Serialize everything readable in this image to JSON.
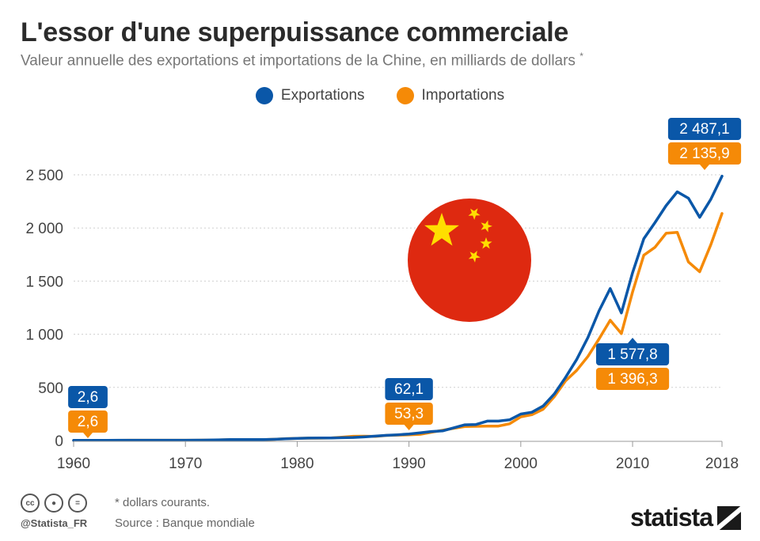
{
  "title": "L'essor d'une superpuissance commerciale",
  "subtitle": "Valeur annuelle des exportations et importations de la Chine, en milliards de dollars",
  "subtitle_mark": "*",
  "colors": {
    "exports": "#0a57a8",
    "imports": "#f58a07",
    "flag_red": "#de2910",
    "flag_yellow": "#ffde00"
  },
  "chart_data": {
    "type": "line",
    "xlabel": "",
    "ylabel": "",
    "x_ticks": [
      1960,
      1970,
      1980,
      1990,
      2000,
      2010,
      2018
    ],
    "y_ticks": [
      0,
      500,
      1000,
      1500,
      2000,
      2500
    ],
    "y_tick_labels": [
      "0",
      "500",
      "1 000",
      "1 500",
      "2 000",
      "2 500"
    ],
    "xlim": [
      1960,
      2018
    ],
    "ylim": [
      0,
      2500
    ],
    "grid": true,
    "legend_position": "top-center",
    "x": [
      1960,
      1961,
      1962,
      1963,
      1964,
      1965,
      1966,
      1967,
      1968,
      1969,
      1970,
      1971,
      1972,
      1973,
      1974,
      1975,
      1976,
      1977,
      1978,
      1979,
      1980,
      1981,
      1982,
      1983,
      1984,
      1985,
      1986,
      1987,
      1988,
      1989,
      1990,
      1991,
      1992,
      1993,
      1994,
      1995,
      1996,
      1997,
      1998,
      1999,
      2000,
      2001,
      2002,
      2003,
      2004,
      2005,
      2006,
      2007,
      2008,
      2009,
      2010,
      2011,
      2012,
      2013,
      2014,
      2015,
      2016,
      2017,
      2018
    ],
    "series": [
      {
        "name": "Exportations",
        "values": [
          2.6,
          2.4,
          2.3,
          2.4,
          2.7,
          3.0,
          3.2,
          2.9,
          2.9,
          3.0,
          3.0,
          3.5,
          4.2,
          7.0,
          8.8,
          9.1,
          8.9,
          9.5,
          12.0,
          16.5,
          20.3,
          23.0,
          23.8,
          24.5,
          27.0,
          29.0,
          34.0,
          42.0,
          49.0,
          54.0,
          62.1,
          72.0,
          85.0,
          91.0,
          120.0,
          148.0,
          151.0,
          183.0,
          183.0,
          195.0,
          249.0,
          266.0,
          325.0,
          438.0,
          593.0,
          762.0,
          969.0,
          1220.0,
          1430.0,
          1200.0,
          1577.8,
          1898.0,
          2050.0,
          2210.0,
          2340.0,
          2280.0,
          2100.0,
          2270.0,
          2487.1
        ],
        "labels": [
          {
            "x": 1960,
            "text": "2,6"
          },
          {
            "x": 1990,
            "text": "62,1"
          },
          {
            "x": 2010,
            "text": "1 577,8"
          },
          {
            "x": 2018,
            "text": "2 487,1"
          }
        ]
      },
      {
        "name": "Importations",
        "values": [
          2.6,
          2.5,
          2.3,
          2.5,
          2.6,
          3.0,
          3.2,
          2.8,
          2.9,
          2.8,
          3.0,
          3.0,
          3.5,
          6.0,
          8.0,
          8.4,
          8.0,
          8.3,
          12.0,
          18.0,
          21.0,
          23.0,
          22.0,
          24.0,
          31.0,
          40.0,
          41.0,
          39.0,
          48.0,
          51.0,
          53.3,
          59.0,
          78.0,
          97.0,
          115.0,
          132.0,
          134.0,
          136.0,
          136.0,
          158.0,
          223.0,
          243.0,
          295.0,
          413.0,
          561.0,
          660.0,
          791.0,
          956.0,
          1132.0,
          1006.0,
          1396.3,
          1743.0,
          1818.0,
          1950.0,
          1959.0,
          1680.0,
          1588.0,
          1843.0,
          2135.9
        ],
        "labels": [
          {
            "x": 1960,
            "text": "2,6"
          },
          {
            "x": 1990,
            "text": "53,3"
          },
          {
            "x": 2010,
            "text": "1 396,3"
          },
          {
            "x": 2018,
            "text": "2 135,9"
          }
        ]
      }
    ]
  },
  "footer": {
    "cc_icons": [
      "cc",
      "by",
      "="
    ],
    "handle": "@Statista_FR",
    "note": "* dollars courants.",
    "source": "Source : Banque mondiale",
    "brand": "statista"
  }
}
